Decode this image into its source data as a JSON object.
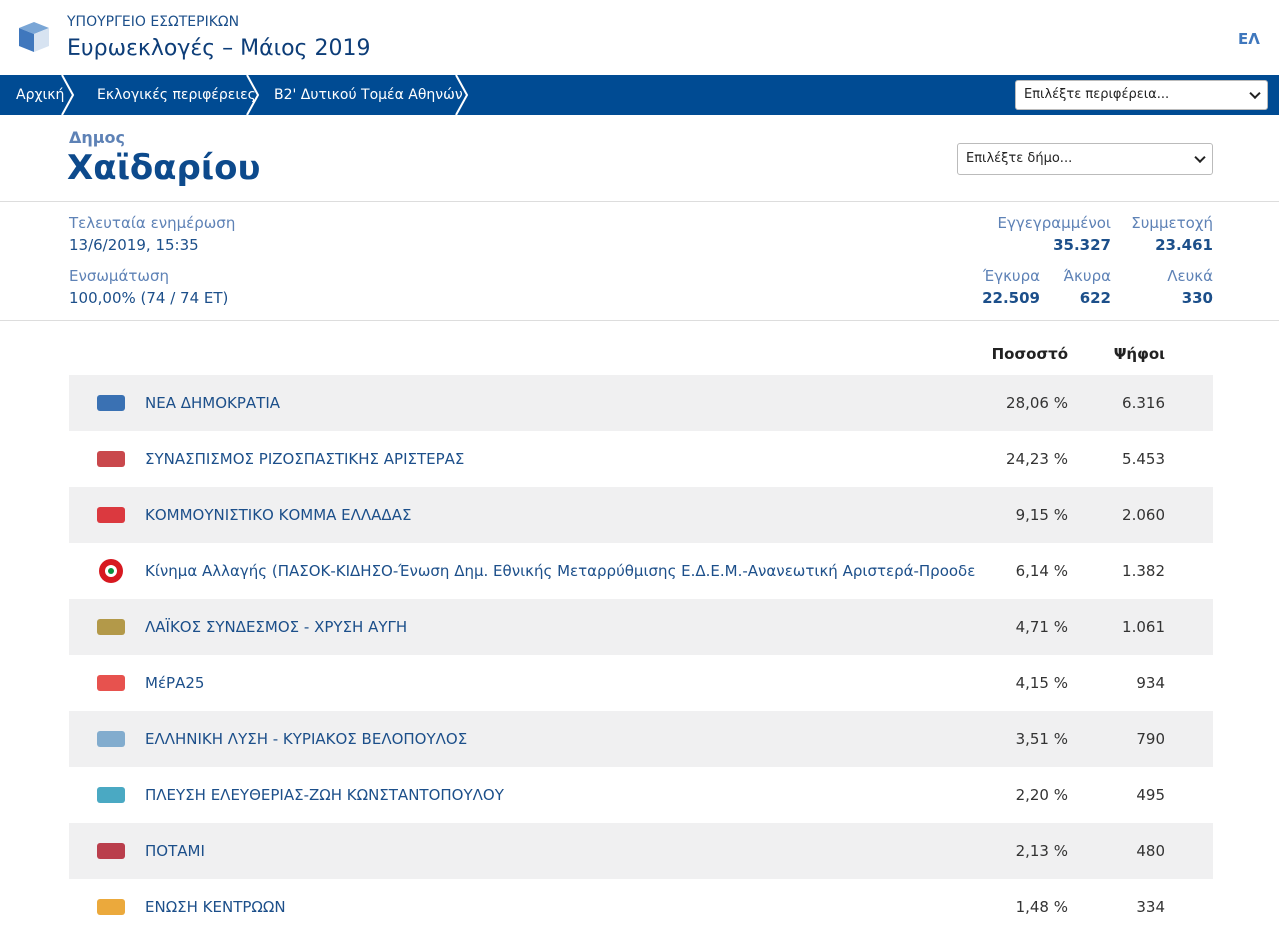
{
  "header": {
    "ministry": "ΥΠΟΥΡΓΕΙΟ ΕΣΩΤΕΡΙΚΩΝ",
    "title": "Ευρωεκλογές – Μάιος 2019",
    "language": "ΕΛ"
  },
  "breadcrumbs": [
    "Αρχική",
    "Εκλογικές περιφέρειες",
    "Β2' Δυτικού Τομέα Αθηνών"
  ],
  "region_select": "Επιλέξτε περιφέρεια...",
  "municipality": {
    "label": "Δημος",
    "name": "Χαϊδαρίου",
    "select": "Επιλέξτε δήμο..."
  },
  "stats": {
    "last_update": {
      "label": "Τελευταία ενημέρωση",
      "value": "13/6/2019, 15:35"
    },
    "incorporation": {
      "label": "Ενσωμάτωση",
      "value": "100,00% (74 / 74 ΕΤ)"
    },
    "registered": {
      "label": "Εγγεγραμμένοι",
      "value": "35.327"
    },
    "turnout": {
      "label": "Συμμετοχή",
      "value": "23.461"
    },
    "valid": {
      "label": "Έγκυρα",
      "value": "22.509"
    },
    "invalid": {
      "label": "Άκυρα",
      "value": "622"
    },
    "blank": {
      "label": "Λευκά",
      "value": "330"
    }
  },
  "table": {
    "columns": [
      "Ποσοστό",
      "Ψήφοι"
    ],
    "rows": [
      [
        "ΝΕΑ ΔΗΜΟΚΡΑΤΙΑ",
        "28,06 %",
        "6.316"
      ],
      [
        "ΣΥΝΑΣΠΙΣΜΟΣ ΡΙΖΟΣΠΑΣΤΙΚΗΣ ΑΡΙΣΤΕΡΑΣ",
        "24,23 %",
        "5.453"
      ],
      [
        "ΚΟΜΜΟΥΝΙΣΤΙΚΟ ΚΟΜΜΑ ΕΛΛΑΔΑΣ",
        "9,15 %",
        "2.060"
      ],
      [
        "Κίνημα Αλλαγής (ΠΑΣΟΚ-ΚΙΔΗΣΟ-Ένωση Δημ. Εθνικής Μεταρρύθμισης Ε.Δ.Ε.Μ.-Ανανεωτική Αριστερά-Προοδευτι...",
        "6,14 %",
        "1.382"
      ],
      [
        "ΛΑΪΚΟΣ ΣΥΝΔΕΣΜΟΣ - ΧΡΥΣΗ ΑΥΓΗ",
        "4,71 %",
        "1.061"
      ],
      [
        "ΜέΡΑ25",
        "4,15 %",
        "934"
      ],
      [
        "ΕΛΛΗΝΙΚΗ ΛΥΣΗ - ΚΥΡΙΑΚΟΣ ΒΕΛΟΠΟΥΛΟΣ",
        "3,51 %",
        "790"
      ],
      [
        "ΠΛΕΥΣΗ ΕΛΕΥΘΕΡΙΑΣ-ΖΩΗ ΚΩΝΣΤΑΝΤΟΠΟΥΛΟΥ",
        "2,20 %",
        "495"
      ],
      [
        "ΠΟΤΑΜΙ",
        "2,13 %",
        "480"
      ],
      [
        "ΕΝΩΣΗ ΚΕΝΤΡΩΩΝ",
        "1,48 %",
        "334"
      ]
    ]
  }
}
